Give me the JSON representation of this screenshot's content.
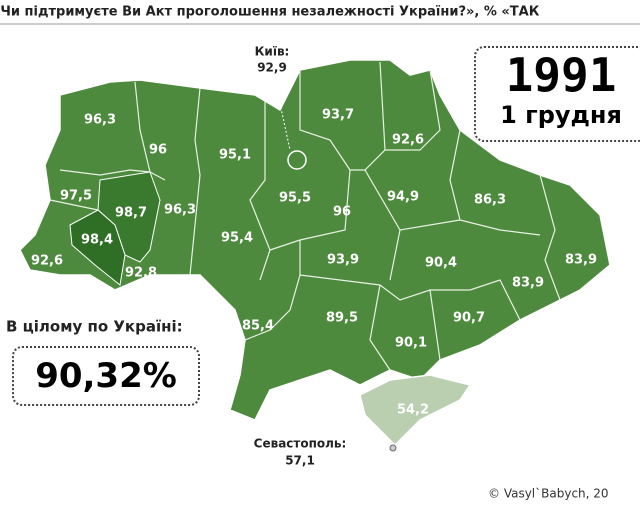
{
  "header": {
    "title": "«Чи підтримуєте Ви Акт проголошення незалежності України?», % «ТАК"
  },
  "date": {
    "year": "1991",
    "day": "1 грудня"
  },
  "total": {
    "label": "В цілому по Україні:",
    "value": "90,32%"
  },
  "kyiv": {
    "label": "Київ:",
    "value": "92,9"
  },
  "sevastopol": {
    "label": "Севастополь:",
    "value": "57,1"
  },
  "regions": [
    "96,3",
    "96",
    "95,1",
    "95,5",
    "93,7",
    "92,6",
    "86,3",
    "83,9",
    "83,9",
    "94,9",
    "96",
    "95,4",
    "96,3",
    "98,7",
    "97,5",
    "98,4",
    "92,6",
    "92,8",
    "93,9",
    "90,4",
    "90,7",
    "85,4",
    "89,5",
    "90,1",
    "54,2"
  ],
  "copyright": "© Vasyl`Babych, 20"
}
